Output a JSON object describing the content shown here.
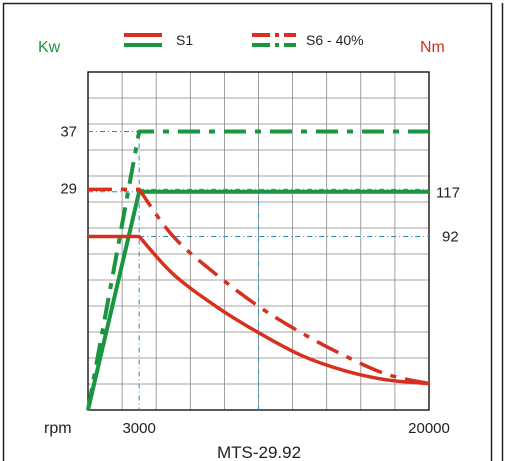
{
  "chart_data": {
    "type": "line",
    "title": "",
    "model": "MTS-29.92",
    "xlabel": "rpm",
    "left_axis_label": "Kw",
    "right_axis_label": "Nm",
    "colors": {
      "power": "#1a9641",
      "torque": "#d7301f",
      "axis": "#000000",
      "grid": "#888888",
      "ref": "#2b8cbe"
    },
    "legend": {
      "placement": "top-center",
      "entries": [
        {
          "label": "S1",
          "style": "solid"
        },
        {
          "label": "S6 - 40%",
          "style": "dash-dot"
        }
      ]
    },
    "x_ticks": [
      "3000",
      "20000"
    ],
    "left_ticks": [
      "37",
      "29"
    ],
    "right_ticks": [
      "117",
      "92"
    ],
    "xlim": [
      0,
      20000
    ],
    "power_ylim": [
      0,
      44.9
    ],
    "torque_ylim": [
      0,
      179.2
    ],
    "reference": {
      "rated_speed": 3000,
      "power_s1": 29,
      "power_s6": 37,
      "torque_s1": 92,
      "torque_s6": 117
    },
    "series": [
      {
        "name": "S1",
        "quantity": "power",
        "axis": "left",
        "style": "solid",
        "x": [
          0,
          3000,
          20000
        ],
        "y": [
          0,
          29,
          29
        ]
      },
      {
        "name": "S6 - 40%",
        "quantity": "power",
        "axis": "left",
        "style": "dash-dot",
        "x": [
          0,
          3000,
          20000
        ],
        "y": [
          0,
          37,
          37
        ]
      },
      {
        "name": "S1",
        "quantity": "torque",
        "axis": "right",
        "style": "solid",
        "x": [
          0,
          3000,
          5000,
          7500,
          10000,
          12500,
          15000,
          17500,
          20000
        ],
        "y": [
          92,
          92,
          72,
          55,
          41,
          29,
          21,
          16,
          14
        ]
      },
      {
        "name": "S6 - 40%",
        "quantity": "torque",
        "axis": "right",
        "style": "dash-dot",
        "x": [
          0,
          3000,
          5000,
          7500,
          10000,
          12500,
          15000,
          17500,
          20000
        ],
        "y": [
          117,
          117,
          92,
          72,
          55,
          41,
          29,
          19,
          14
        ]
      }
    ],
    "grid": true
  }
}
